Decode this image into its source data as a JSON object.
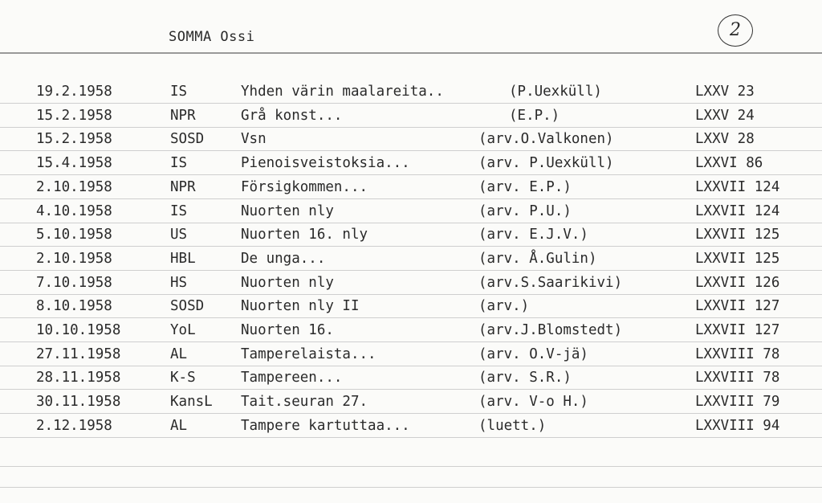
{
  "card": {
    "name": "SOMMA Ossi",
    "number": "2"
  },
  "rows": [
    [
      "19.2.1958",
      "IS",
      "Yhden värin maalareita..",
      "(P.Uexküll)",
      "LXXV 23"
    ],
    [
      "15.2.1958",
      "NPR",
      "Grå konst...",
      "(E.P.)",
      "LXXV 24"
    ],
    [
      "15.2.1958",
      "SOSD",
      "Vsn",
      "(arv.O.Valkonen)",
      "LXXV 28"
    ],
    [
      "15.4.1958",
      "IS",
      "Pienoisveistoksia...",
      "(arv. P.Uexküll)",
      "LXXVI 86"
    ],
    [
      "2.10.1958",
      "NPR",
      "Försigkommen...",
      "(arv. E.P.)",
      "LXXVII 124"
    ],
    [
      "4.10.1958",
      "IS",
      "Nuorten nly",
      "(arv. P.U.)",
      "LXXVII 124"
    ],
    [
      "5.10.1958",
      "US",
      "Nuorten 16. nly",
      "(arv. E.J.V.)",
      "LXXVII 125"
    ],
    [
      "2.10.1958",
      "HBL",
      "De unga...",
      "(arv. Å.Gulin)",
      "LXXVII 125"
    ],
    [
      "7.10.1958",
      "HS",
      "Nuorten nly",
      "(arv.S.Saarikivi)",
      "LXXVII 126"
    ],
    [
      "8.10.1958",
      "SOSD",
      "Nuorten nly II",
      "(arv.)",
      "LXXVII 127"
    ],
    [
      "10.10.1958",
      "YoL",
      "Nuorten 16.",
      "(arv.J.Blomstedt)",
      "LXXVII 127"
    ],
    [
      "27.11.1958",
      "AL",
      "Tamperelaista...",
      "(arv. O.V-jä)",
      "LXXVIII 78"
    ],
    [
      "28.11.1958",
      "K-S",
      "Tampereen...",
      "(arv. S.R.)",
      "LXXVIII 78"
    ],
    [
      "30.11.1958",
      "KansL",
      "Tait.seuran 27.",
      "(arv. V-o H.)",
      "LXXVIII 79"
    ],
    [
      "2.12.1958",
      "AL",
      "Tampere kartuttaa...",
      "(luett.)",
      "LXXVIII 94"
    ]
  ]
}
